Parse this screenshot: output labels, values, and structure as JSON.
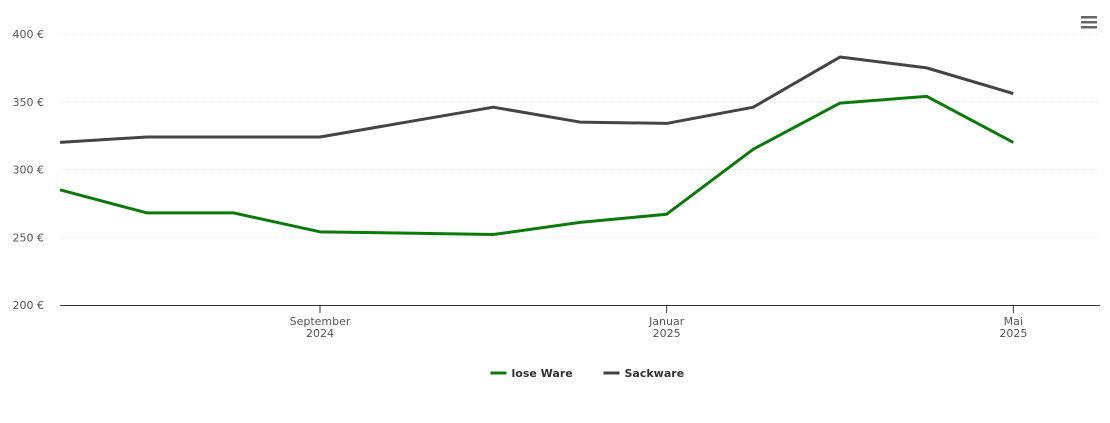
{
  "chart_data": {
    "type": "line",
    "x": [
      "2024-06",
      "2024-07",
      "2024-08",
      "2024-09",
      "2024-10",
      "2024-11",
      "2024-12",
      "2025-01",
      "2025-02",
      "2025-03",
      "2025-04",
      "2025-05"
    ],
    "series": [
      {
        "name": "lose Ware",
        "color": "#0b7a0b",
        "values": [
          285,
          268,
          268,
          254,
          253,
          252,
          261,
          267,
          315,
          349,
          354,
          320
        ]
      },
      {
        "name": "Sackware",
        "color": "#444444",
        "values": [
          320,
          324,
          324,
          324,
          335,
          346,
          335,
          334,
          346,
          383,
          375,
          356
        ]
      }
    ],
    "xlim": [
      "2024-06",
      "2025-06"
    ],
    "xticks": [
      {
        "value": "2024-09",
        "label": "September\n2024"
      },
      {
        "value": "2025-01",
        "label": "Januar\n2025"
      },
      {
        "value": "2025-05",
        "label": "Mai\n2025"
      }
    ],
    "ylim": [
      200,
      400
    ],
    "yticks": [
      {
        "value": 200,
        "label": "200 €"
      },
      {
        "value": 250,
        "label": "250 €"
      },
      {
        "value": 300,
        "label": "300 €"
      },
      {
        "value": 350,
        "label": "350 €"
      },
      {
        "value": 400,
        "label": "400 €"
      }
    ],
    "grid": true,
    "legend": "bottom"
  }
}
